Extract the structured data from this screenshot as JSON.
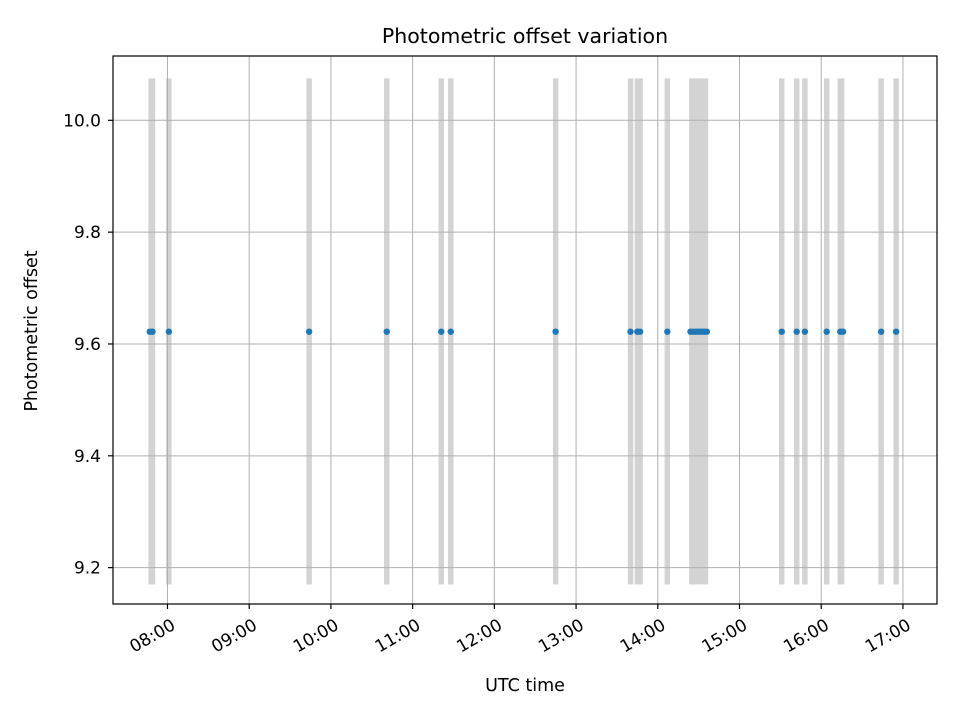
{
  "chart_data": {
    "type": "scatter",
    "title": "Photometric offset variation",
    "xlabel": "UTC time",
    "ylabel": "Photometric offset",
    "x_axis": {
      "kind": "time",
      "format": "HH:MM",
      "range": [
        "07:20",
        "17:25"
      ]
    },
    "ylim": [
      9.135,
      10.115
    ],
    "x_ticks": [
      "08:00",
      "09:00",
      "10:00",
      "11:00",
      "12:00",
      "13:00",
      "14:00",
      "15:00",
      "16:00",
      "17:00"
    ],
    "y_ticks": [
      "9.2",
      "9.4",
      "9.6",
      "9.8",
      "10.0"
    ],
    "grid": true,
    "band_color": "#d3d3d3",
    "point_color": "#1f77b4",
    "bands": [
      {
        "start": "07:46",
        "end": "07:51"
      },
      {
        "start": "07:59",
        "end": "08:03"
      },
      {
        "start": "09:42",
        "end": "09:46"
      },
      {
        "start": "10:39",
        "end": "10:43"
      },
      {
        "start": "11:19",
        "end": "11:23"
      },
      {
        "start": "11:26",
        "end": "11:30"
      },
      {
        "start": "12:43",
        "end": "12:47"
      },
      {
        "start": "13:38",
        "end": "13:42"
      },
      {
        "start": "13:43",
        "end": "13:49"
      },
      {
        "start": "14:05",
        "end": "14:09"
      },
      {
        "start": "14:23",
        "end": "14:37"
      },
      {
        "start": "15:29",
        "end": "15:33"
      },
      {
        "start": "15:40",
        "end": "15:44"
      },
      {
        "start": "15:46",
        "end": "15:50"
      },
      {
        "start": "16:02",
        "end": "16:06"
      },
      {
        "start": "16:12",
        "end": "16:17"
      },
      {
        "start": "16:42",
        "end": "16:46"
      },
      {
        "start": "16:53",
        "end": "16:57"
      }
    ],
    "points": [
      {
        "x": "07:47",
        "y": 9.622
      },
      {
        "x": "07:49",
        "y": 9.622
      },
      {
        "x": "08:01",
        "y": 9.622
      },
      {
        "x": "09:44",
        "y": 9.622
      },
      {
        "x": "10:41",
        "y": 9.622
      },
      {
        "x": "11:21",
        "y": 9.622
      },
      {
        "x": "11:28",
        "y": 9.622
      },
      {
        "x": "12:45",
        "y": 9.622
      },
      {
        "x": "13:40",
        "y": 9.622
      },
      {
        "x": "13:45",
        "y": 9.622
      },
      {
        "x": "13:47",
        "y": 9.622
      },
      {
        "x": "14:07",
        "y": 9.622
      },
      {
        "x": "14:24",
        "y": 9.622
      },
      {
        "x": "14:26",
        "y": 9.622
      },
      {
        "x": "14:28",
        "y": 9.622
      },
      {
        "x": "14:30",
        "y": 9.622
      },
      {
        "x": "14:32",
        "y": 9.622
      },
      {
        "x": "14:34",
        "y": 9.622
      },
      {
        "x": "14:36",
        "y": 9.622
      },
      {
        "x": "15:31",
        "y": 9.622
      },
      {
        "x": "15:42",
        "y": 9.622
      },
      {
        "x": "15:48",
        "y": 9.622
      },
      {
        "x": "16:04",
        "y": 9.622
      },
      {
        "x": "16:14",
        "y": 9.622
      },
      {
        "x": "16:16",
        "y": 9.622
      },
      {
        "x": "16:44",
        "y": 9.622
      },
      {
        "x": "16:55",
        "y": 9.622
      }
    ]
  }
}
